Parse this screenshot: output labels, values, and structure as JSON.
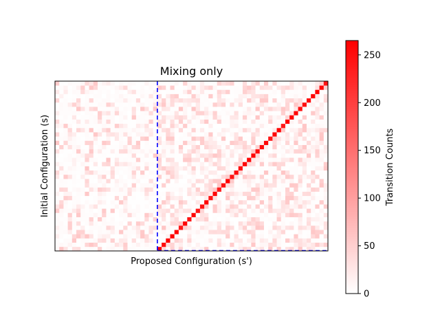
{
  "chart_data": {
    "type": "heatmap",
    "title": "Mixing only",
    "xlabel": "Proposed Configuration (s')",
    "ylabel": "Initial Configuration (s)",
    "x_ticks_shown": false,
    "y_ticks_shown": false,
    "grid_size": [
      40,
      64
    ],
    "colormap": {
      "low": "#ffffff",
      "high": "#ff0000"
    },
    "colorbar": {
      "label": "Transition Counts",
      "range": [
        0,
        265
      ],
      "ticks": [
        0,
        50,
        100,
        150,
        200,
        250
      ]
    },
    "diagonal": {
      "value_range": [
        235,
        265
      ],
      "start_column": 24,
      "end_column": 63
    },
    "off_diagonal_value_range": [
      0,
      60
    ],
    "markers": {
      "vertical_dashed_line_column": 24,
      "horizontal_dashed_line_row": 0,
      "line_color": "#0000ff"
    }
  }
}
